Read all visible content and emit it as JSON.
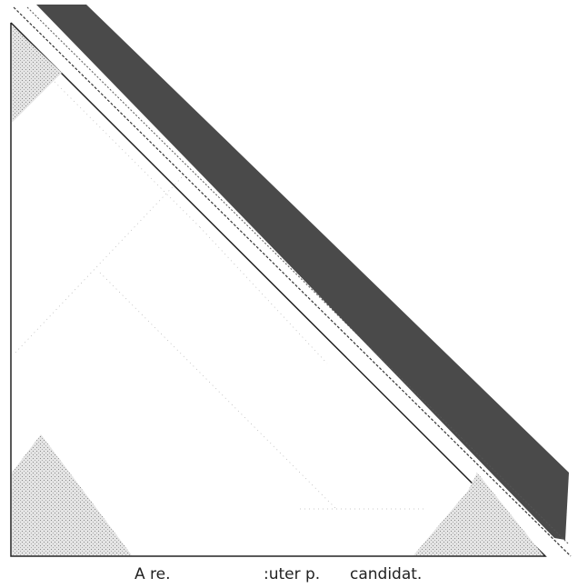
{
  "caption": {
    "fragments": [
      "A re.",
      ":uter p.",
      "candidat."
    ]
  }
}
